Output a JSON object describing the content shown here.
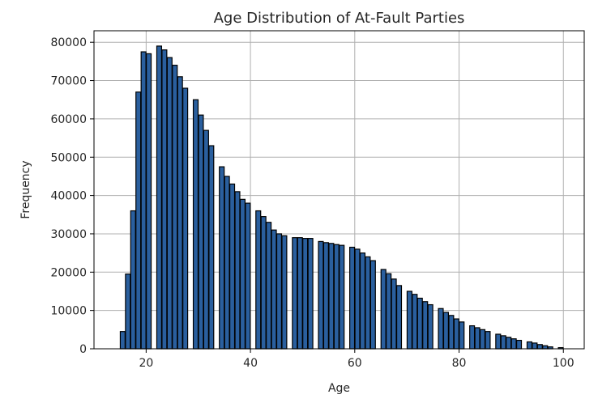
{
  "chart_data": {
    "type": "bar",
    "title": "Age Distribution of At-Fault Parties",
    "xlabel": "Age",
    "ylabel": "Frequency",
    "xlim": [
      10,
      104
    ],
    "ylim": [
      0,
      83000
    ],
    "x_ticks": [
      20,
      40,
      60,
      80,
      100
    ],
    "y_ticks": [
      0,
      10000,
      20000,
      30000,
      40000,
      50000,
      60000,
      70000,
      80000
    ],
    "grid": true,
    "bar_color": "#2a5f9e",
    "edge_color": "#000000",
    "ages": [
      15,
      16,
      17,
      18,
      19,
      20,
      21,
      22,
      23,
      24,
      25,
      26,
      27,
      28,
      29,
      30,
      31,
      32,
      33,
      34,
      35,
      36,
      37,
      38,
      39,
      40,
      41,
      42,
      43,
      44,
      45,
      46,
      47,
      48,
      49,
      50,
      51,
      52,
      53,
      54,
      55,
      56,
      57,
      58,
      59,
      60,
      61,
      62,
      63,
      64,
      65,
      66,
      67,
      68,
      69,
      70,
      71,
      72,
      73,
      74,
      75,
      76,
      77,
      78,
      79,
      80,
      81,
      82,
      83,
      84,
      85,
      86,
      87,
      88,
      89,
      90,
      91,
      92,
      93,
      94,
      95,
      96,
      97,
      98,
      99
    ],
    "values": [
      4500,
      19500,
      36000,
      67000,
      77500,
      77000,
      0,
      79000,
      78000,
      76000,
      74000,
      71000,
      68000,
      0,
      65000,
      61000,
      57000,
      53000,
      0,
      47500,
      45000,
      43000,
      41000,
      39000,
      38000,
      0,
      36000,
      34500,
      33000,
      31000,
      30000,
      29500,
      0,
      29000,
      29000,
      28800,
      28800,
      0,
      28000,
      27700,
      27500,
      27200,
      27000,
      0,
      26500,
      26000,
      25000,
      24000,
      23000,
      0,
      20700,
      19600,
      18200,
      16500,
      0,
      15000,
      14200,
      13200,
      12300,
      11500,
      0,
      10500,
      9500,
      8700,
      7800,
      7000,
      0,
      6000,
      5500,
      5000,
      4500,
      0,
      3800,
      3400,
      3000,
      2600,
      2200,
      0,
      1800,
      1500,
      1100,
      800,
      500,
      0,
      300
    ]
  }
}
